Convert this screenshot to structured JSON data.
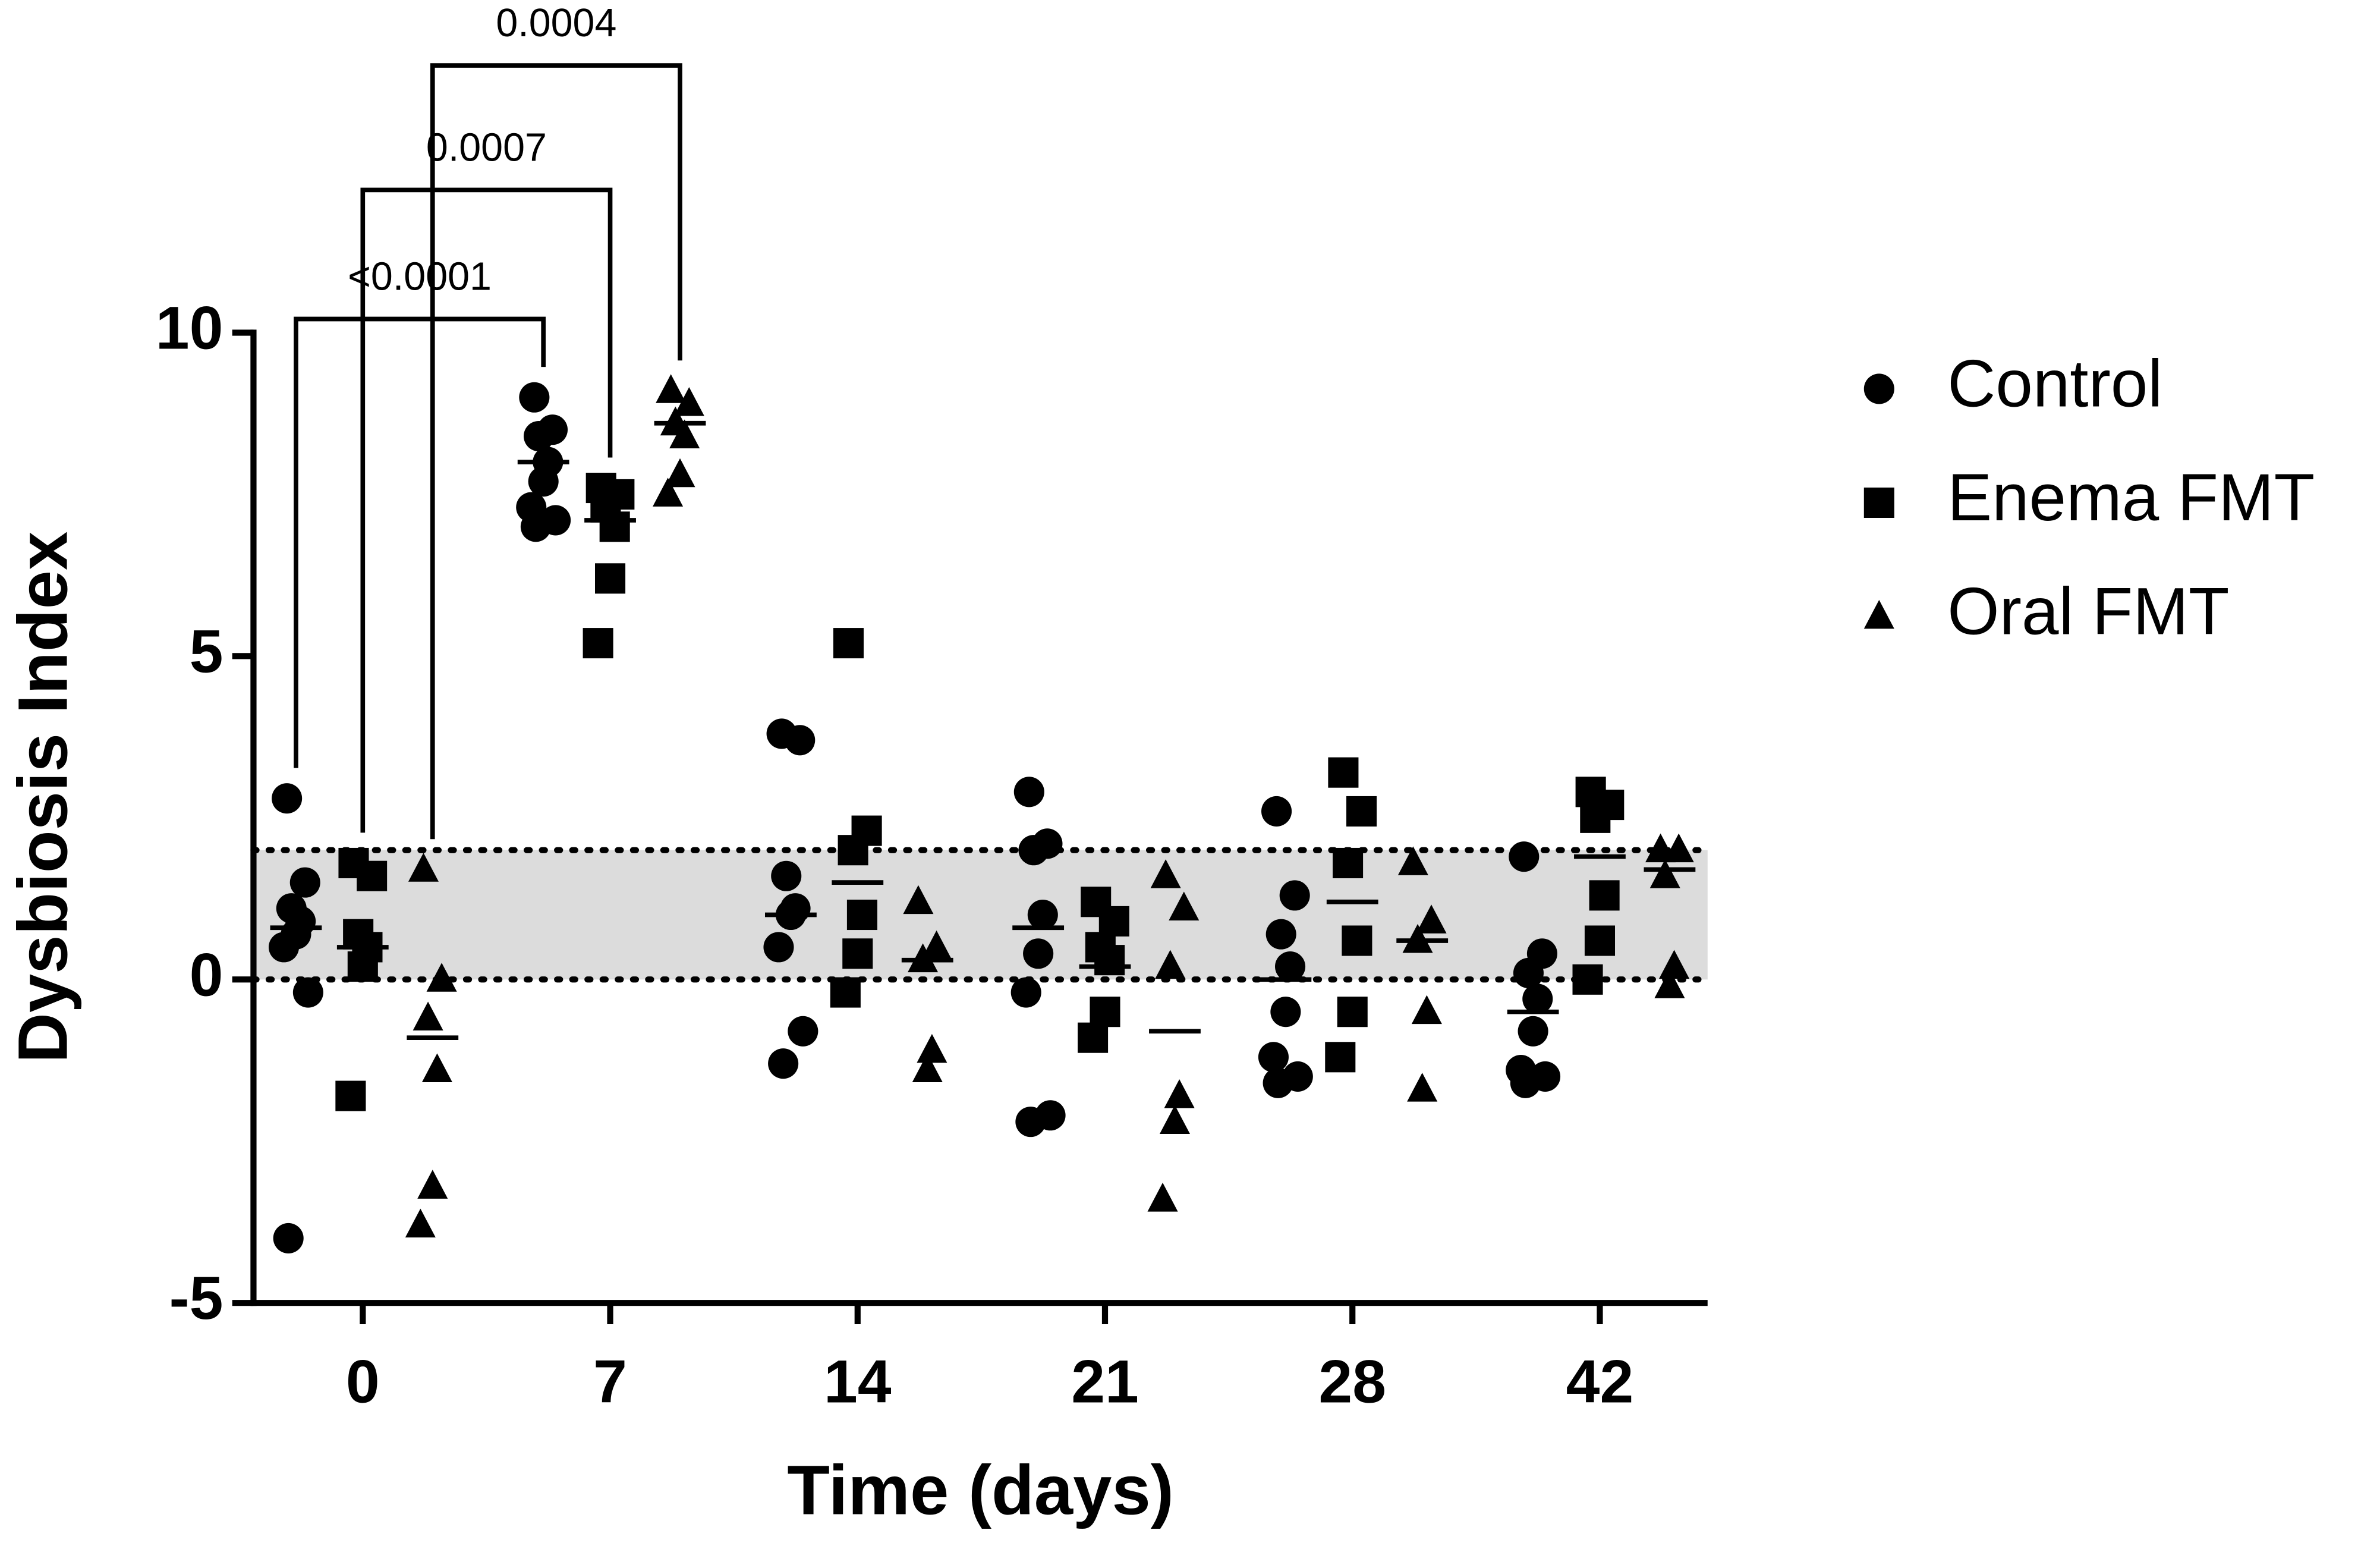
{
  "chart_data": {
    "type": "dot",
    "xlabel": "Time (days)",
    "ylabel": "Dysbiosis Index",
    "categories": [
      "0",
      "7",
      "14",
      "21",
      "28",
      "42"
    ],
    "ylim": [
      -5,
      10
    ],
    "yticks": [
      -5,
      0,
      5,
      10
    ],
    "reference_band": [
      0,
      2
    ],
    "band_color": "#dcdcdc",
    "series": [
      {
        "name": "Control",
        "marker": "circle",
        "color": "#000000",
        "values": [
          [
            2.8,
            1.5,
            1.1,
            0.9,
            0.7,
            0.5,
            -0.2,
            -4.0
          ],
          [
            9.0,
            8.5,
            8.4,
            8.0,
            7.7,
            7.3,
            7.1,
            7.0
          ],
          [
            3.8,
            3.7,
            1.6,
            1.1,
            1.0,
            0.5,
            -0.8,
            -1.3
          ],
          [
            2.9,
            2.1,
            2.0,
            1.0,
            0.4,
            -0.2,
            -2.1,
            -2.2
          ],
          [
            2.6,
            1.3,
            0.7,
            0.2,
            -0.5,
            -1.2,
            -1.5,
            -1.6
          ],
          [
            1.9,
            0.4,
            0.1,
            -0.3,
            -0.8,
            -1.4,
            -1.5,
            -1.6
          ]
        ],
        "means": [
          0.8,
          8.0,
          1.0,
          0.8,
          0.0,
          -0.5
        ]
      },
      {
        "name": "Enema FMT",
        "marker": "square",
        "color": "#000000",
        "values": [
          [
            1.8,
            1.6,
            0.7,
            0.5,
            0.2,
            -1.8
          ],
          [
            7.6,
            7.5,
            7.3,
            7.0,
            6.2,
            5.2
          ],
          [
            5.2,
            2.3,
            2.0,
            1.0,
            0.4,
            -0.2
          ],
          [
            1.2,
            0.9,
            0.5,
            0.3,
            -0.5,
            -0.9
          ],
          [
            3.2,
            2.6,
            1.8,
            0.6,
            -0.5,
            -1.2
          ],
          [
            2.9,
            2.7,
            2.5,
            1.3,
            0.6,
            0.0
          ]
        ],
        "means": [
          0.5,
          7.1,
          1.5,
          0.2,
          1.2,
          1.9
        ]
      },
      {
        "name": "Oral FMT",
        "marker": "triangle",
        "color": "#000000",
        "values": [
          [
            1.7,
            0.0,
            -0.6,
            -1.4,
            -3.2,
            -3.8
          ],
          [
            9.1,
            8.9,
            8.6,
            8.4,
            7.8,
            7.5
          ],
          [
            1.2,
            0.5,
            0.3,
            -1.1,
            -1.4
          ],
          [
            1.6,
            1.1,
            0.2,
            -1.8,
            -2.2,
            -3.4
          ],
          [
            1.8,
            0.9,
            0.6,
            -0.5,
            -1.7
          ],
          [
            2.0,
            2.0,
            1.6,
            0.2,
            -0.1
          ]
        ],
        "means": [
          -0.9,
          8.6,
          0.3,
          -0.8,
          0.6,
          1.7
        ]
      }
    ],
    "legend": "right",
    "annotations": [
      {
        "label": "<0.0001",
        "from": [
          0,
          0
        ],
        "to": [
          1,
          0
        ]
      },
      {
        "label": "0.0007",
        "from": [
          0,
          1
        ],
        "to": [
          1,
          1
        ]
      },
      {
        "label": "0.0004",
        "from": [
          0,
          2
        ],
        "to": [
          1,
          2
        ]
      }
    ]
  }
}
